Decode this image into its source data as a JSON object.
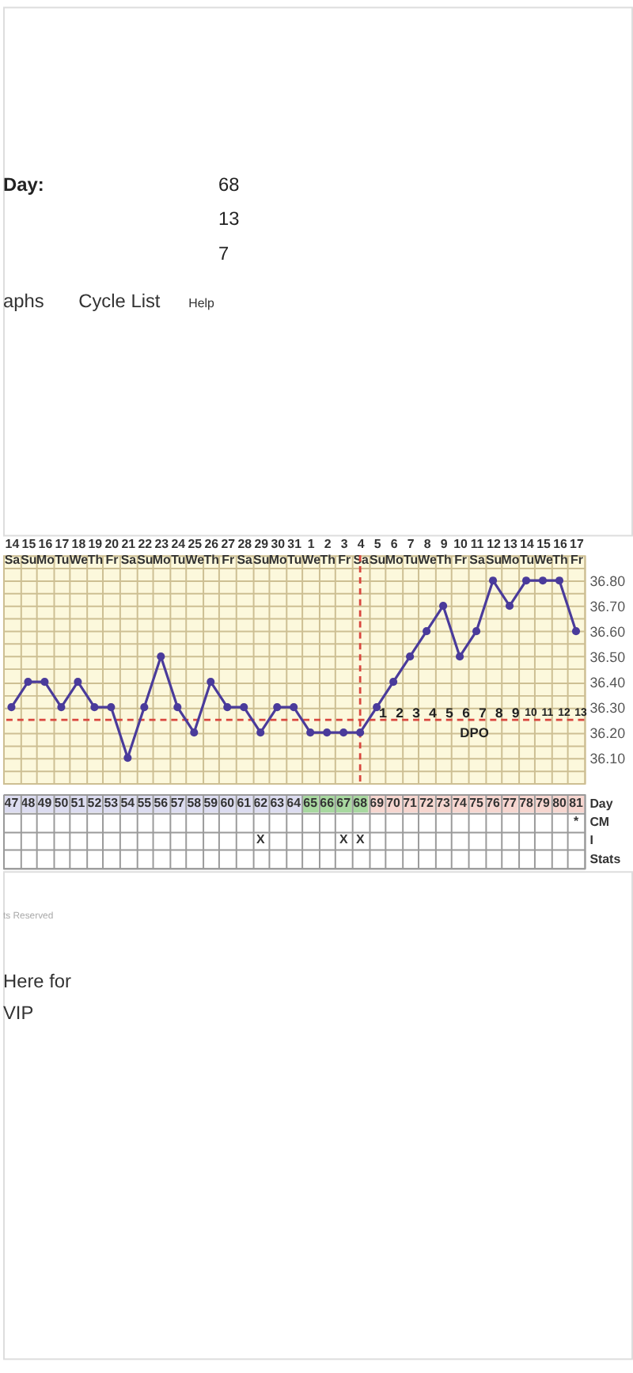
{
  "chart_data": [
    {
      "type": "line",
      "categories": [
        "14\nSa",
        "15\nSu",
        "16\nMo",
        "17\nTu",
        "18\nWe",
        "19\nTh",
        "20\nFr",
        "21\nSa",
        "22\nSu",
        "23\nMo",
        "24\nTu",
        "25\nWe",
        "26\nTh",
        "27\nFr",
        "28\nSa",
        "29\nSu",
        "30\nMo",
        "31\nTu",
        "1\nWe",
        "2\nTh",
        "3\nFr",
        "4\nSa",
        "5\nSu",
        "6\nMo",
        "7\nTu",
        "8\nWe",
        "9\nTh",
        "10\nFr",
        "11\nSa",
        "12\nSu",
        "13\nMo",
        "14\nTu",
        "15\nWe",
        "16\nTh",
        "17\nFr"
      ],
      "series": [
        {
          "color": "#4a3b9b",
          "values": [
            36.3,
            36.4,
            36.4,
            36.3,
            36.4,
            36.3,
            36.3,
            36.1,
            36.3,
            36.5,
            36.3,
            36.2,
            36.4,
            36.3,
            36.3,
            36.2,
            36.3,
            36.3,
            36.2,
            36.2,
            36.2,
            36.2,
            36.3,
            36.4,
            36.5,
            36.6,
            36.7,
            36.5,
            36.6,
            36.8,
            36.7,
            36.8,
            36.8,
            36.8,
            36.6
          ]
        }
      ],
      "ylim": [
        36.0,
        36.9
      ],
      "yticks": [
        {
          "value": 36.05,
          "label": null
        },
        {
          "value": 36.1,
          "label": "36.10"
        },
        {
          "value": 36.15,
          "label": null
        },
        {
          "value": 36.2,
          "label": "36.20"
        },
        {
          "value": 36.3,
          "label": "36.30"
        },
        {
          "value": 36.35,
          "label": null
        },
        {
          "value": 36.4,
          "label": "36.40"
        },
        {
          "value": 36.45,
          "label": null
        },
        {
          "value": 36.5,
          "label": "36.50"
        },
        {
          "value": 36.55,
          "label": null
        },
        {
          "value": 36.6,
          "label": "36.60"
        },
        {
          "value": 36.65,
          "label": null
        },
        {
          "value": 36.7,
          "label": "36.70"
        },
        {
          "value": 36.75,
          "label": null
        },
        {
          "value": 36.8,
          "label": "36.80"
        },
        {
          "value": 36.85,
          "label": null
        }
      ],
      "grid": true,
      "marker": "circle",
      "line_style": "solid",
      "ref_lines": [
        {
          "axis": "y",
          "value": 36.25,
          "color": "#d9473f",
          "line_style": "dashed"
        },
        {
          "axis": "x",
          "value": "4\nSa",
          "color": "#d9473f",
          "line_style": "dashed"
        }
      ],
      "annotations": [
        "Day:",
        "68",
        "13",
        "7",
        "aphs",
        "Cycle List",
        "Help",
        "DPO",
        "ts Reserved",
        "Here for\nVIP",
        "1 2 3 4 5 6 7 8 9",
        "10",
        "11",
        "12",
        "13"
      ]
    },
    {
      "type": "heatmap",
      "categories": [
        null,
        null,
        null,
        null,
        null,
        null,
        null,
        null,
        null,
        null,
        null,
        null,
        null,
        null,
        null,
        null,
        null,
        null,
        null,
        null,
        null,
        null,
        null,
        null,
        null,
        null,
        null,
        null,
        null,
        null,
        null,
        null,
        null,
        null,
        null
      ],
      "y_categories": [
        "Day",
        "CM",
        "I",
        "Stats"
      ],
      "cells": [
        [
          null,
          null,
          null,
          null,
          null,
          null,
          null,
          null,
          null,
          null,
          null,
          null,
          null,
          null,
          null,
          null,
          null,
          null,
          null,
          null,
          null,
          null,
          null,
          null,
          null,
          null,
          null,
          null,
          null,
          null,
          null,
          null,
          null,
          null,
          null
        ],
        [
          null,
          null,
          null,
          null,
          null,
          null,
          null,
          null,
          null,
          null,
          null,
          null,
          null,
          null,
          null,
          null,
          null,
          null,
          null,
          null,
          null,
          null,
          null,
          null,
          null,
          null,
          null,
          null,
          null,
          null,
          null,
          null,
          null,
          null,
          null
        ],
        [
          null,
          null,
          null,
          null,
          null,
          null,
          null,
          null,
          null,
          null,
          null,
          null,
          null,
          null,
          null,
          null,
          null,
          null,
          null,
          null,
          null,
          null,
          null,
          null,
          null,
          null,
          null,
          null,
          null,
          null,
          null,
          null,
          null,
          null,
          null
        ],
        [
          null,
          null,
          null,
          null,
          null,
          null,
          null,
          null,
          null,
          null,
          null,
          null,
          null,
          null,
          null,
          null,
          null,
          null,
          null,
          null,
          null,
          null,
          null,
          null,
          null,
          null,
          null,
          null,
          null,
          null,
          null,
          null,
          null,
          null,
          null
        ]
      ],
      "cell_labels": [
        [
          "47",
          "48",
          "49",
          "50",
          "51",
          "52",
          "53",
          "54",
          "55",
          "56",
          "57",
          "58",
          "59",
          "60",
          "61",
          "62",
          "63",
          "64",
          "65",
          "66",
          "67",
          "68",
          "69",
          "70",
          "71",
          "72",
          "73",
          "74",
          "75",
          "76",
          "77",
          "78",
          "79",
          "80",
          "81"
        ],
        [
          null,
          null,
          null,
          null,
          null,
          null,
          null,
          null,
          null,
          null,
          null,
          null,
          null,
          null,
          null,
          null,
          null,
          null,
          null,
          null,
          null,
          null,
          null,
          null,
          null,
          null,
          null,
          null,
          null,
          null,
          null,
          null,
          null,
          null,
          "*"
        ],
        [
          null,
          null,
          null,
          null,
          null,
          null,
          null,
          null,
          null,
          null,
          null,
          null,
          null,
          null,
          null,
          "X",
          null,
          null,
          null,
          null,
          "X",
          "X",
          null,
          null,
          null,
          null,
          null,
          null,
          null,
          null,
          null,
          null,
          null,
          null,
          null
        ],
        [
          null,
          null,
          null,
          null,
          null,
          null,
          null,
          null,
          null,
          null,
          null,
          null,
          null,
          null,
          null,
          null,
          null,
          null,
          null,
          null,
          null,
          null,
          null,
          null,
          null,
          null,
          null,
          null,
          null,
          null,
          null,
          null,
          null,
          null,
          null
        ]
      ],
      "colors": [
        [
          "#dcdcf0",
          "#dcdcf0",
          "#dcdcf0",
          "#dcdcf0",
          "#dcdcf0",
          "#dcdcf0",
          "#dcdcf0",
          "#dcdcf0",
          "#dcdcf0",
          "#dcdcf0",
          "#dcdcf0",
          "#dcdcf0",
          "#dcdcf0",
          "#dcdcf0",
          "#dcdcf0",
          "#dcdcf0",
          "#dcdcf0",
          "#dcdcf0",
          "#a8d8a0",
          "#a8d8a0",
          "#a8d8a0",
          "#a8d8a0",
          "#f6d6d0",
          "#f6d6d0",
          "#f6d6d0",
          "#f6d6d0",
          "#f6d6d0",
          "#f6d6d0",
          "#f6d6d0",
          "#f6d6d0",
          "#f6d6d0",
          "#f6d6d0",
          "#f6d6d0",
          "#f6d6d0",
          "#f6d6d0"
        ],
        null,
        null,
        null
      ],
      "grid": true
    }
  ]
}
